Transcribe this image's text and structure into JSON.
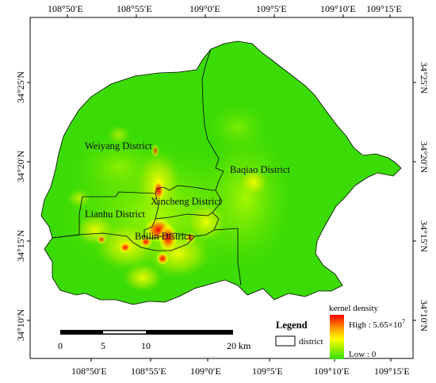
{
  "map": {
    "top_longitude_labels": [
      "108°50′E",
      "108°55′E",
      "109°0′E",
      "109°5′E",
      "109°10′E",
      "109°15′E"
    ],
    "bottom_longitude_labels": [
      "108°50′E",
      "108°55′E",
      "109°0′E",
      "109°5′E",
      "109°10′E",
      "109°15′E"
    ],
    "left_latitude_labels": [
      "34°25′N",
      "34°20′N",
      "34°15′N",
      "34°10′N"
    ],
    "right_latitude_labels": [
      "34°25′N",
      "34°20′N",
      "34°15′N",
      "34°10′N"
    ],
    "districts": {
      "weiyang": "Weiyang District",
      "baqiao": "Baqiao District",
      "xincheng": "Xincheng District",
      "lianhu": "Lianhu District",
      "beilin": "Beilin District"
    },
    "colors": {
      "low": "#33dd00",
      "mid": "#ffff00",
      "high": "#ff0000",
      "boundary": "#000000"
    }
  },
  "scale_bar": {
    "ticks": [
      "0",
      "5",
      "10",
      "20 km"
    ]
  },
  "legend": {
    "title": "Legend",
    "district_label": "district",
    "density_title": "kernel density",
    "high_label": "High : 5.65×10",
    "high_exp": "7",
    "low_label": "Low : 0"
  }
}
